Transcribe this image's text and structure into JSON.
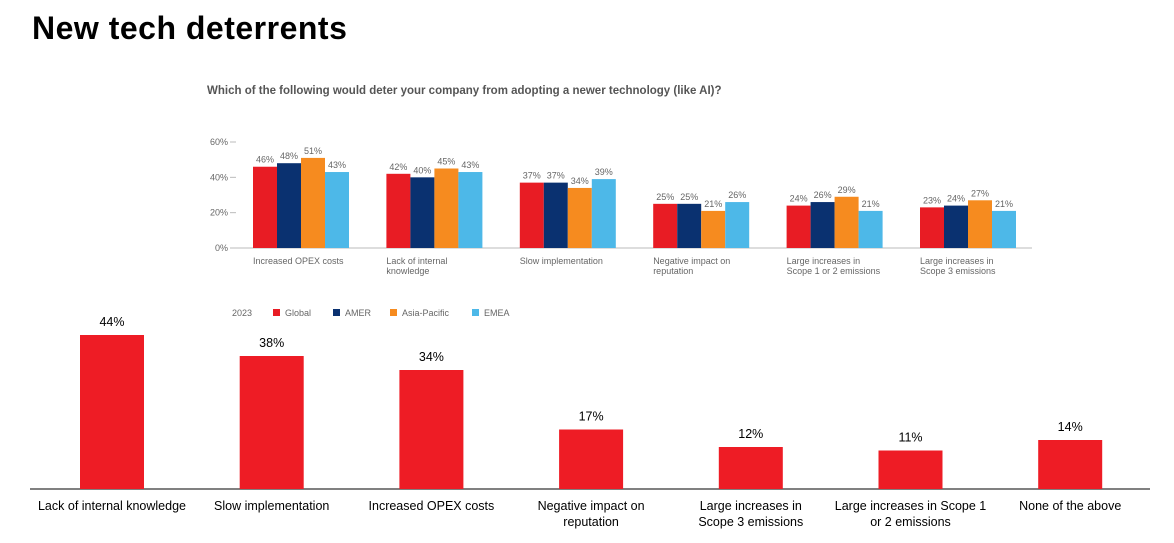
{
  "page": {
    "title": "New tech deterrents"
  },
  "chart_data": [
    {
      "type": "bar",
      "title": "Which of the following would deter your company from adopting a newer technology (like AI)?",
      "legend_title": "2023",
      "legend_position": "bottom-left",
      "categories": [
        [
          "Increased OPEX costs"
        ],
        [
          "Lack of internal",
          "knowledge"
        ],
        [
          "Slow implementation"
        ],
        [
          "Negative impact on",
          "reputation"
        ],
        [
          "Large increases in",
          "Scope 1 or 2 emissions"
        ],
        [
          "Large increases in",
          "Scope 3 emissions"
        ]
      ],
      "series": [
        {
          "name": "Global",
          "color": "#e81c24",
          "values": [
            46,
            42,
            37,
            25,
            24,
            23
          ]
        },
        {
          "name": "AMER",
          "color": "#0a3170",
          "values": [
            48,
            40,
            37,
            25,
            26,
            24
          ]
        },
        {
          "name": "Asia-Pacific",
          "color": "#f68b1f",
          "values": [
            51,
            45,
            34,
            21,
            29,
            27
          ]
        },
        {
          "name": "EMEA",
          "color": "#4db8e8",
          "values": [
            43,
            43,
            39,
            26,
            21,
            21
          ]
        }
      ],
      "yticks": [
        "0%",
        "20%",
        "40%",
        "60%"
      ],
      "ylim": [
        0,
        60
      ],
      "unit": "%"
    },
    {
      "type": "bar",
      "title": "",
      "color": "#ee1c25",
      "categories": [
        [
          "Lack of internal knowledge"
        ],
        [
          "Slow implementation"
        ],
        [
          "Increased OPEX costs"
        ],
        [
          "Negative impact on",
          "reputation"
        ],
        [
          "Large increases in",
          "Scope 3 emissions"
        ],
        [
          "Large increases in Scope 1",
          "or 2 emissions"
        ],
        [
          "None of the above"
        ]
      ],
      "values": [
        44,
        38,
        34,
        17,
        12,
        11,
        14
      ],
      "labels": [
        "44%",
        "38%",
        "34%",
        "17%",
        "12%",
        "11%",
        "14%"
      ],
      "ylim": [
        0,
        44
      ]
    }
  ]
}
